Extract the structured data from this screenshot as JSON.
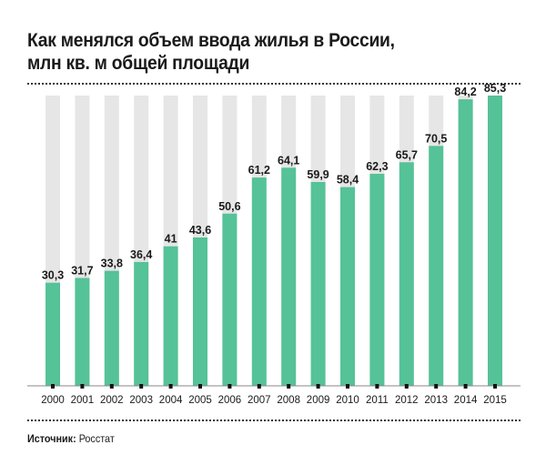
{
  "chart_data": {
    "type": "bar",
    "title": "Как менялся объем ввода жилья в России,",
    "subtitle": "млн кв. м общей площади",
    "categories": [
      "2000",
      "2001",
      "2002",
      "2003",
      "2004",
      "2005",
      "2006",
      "2007",
      "2008",
      "2009",
      "2010",
      "2011",
      "2012",
      "2013",
      "2014",
      "2015"
    ],
    "values": [
      30.3,
      31.7,
      33.8,
      36.4,
      41,
      43.6,
      50.6,
      61.2,
      64.1,
      59.9,
      58.4,
      62.3,
      65.7,
      70.5,
      84.2,
      85.3
    ],
    "labels": [
      "30,3",
      "31,7",
      "33,8",
      "36,4",
      "41",
      "43,6",
      "50,6",
      "61,2",
      "64,1",
      "59,9",
      "58,4",
      "62,3",
      "65,7",
      "70,5",
      "84,2",
      "85,3"
    ],
    "xlabel": "",
    "ylabel": "",
    "ylim": [
      0,
      85.3
    ],
    "grid": false,
    "colors": {
      "bar": "#55c297",
      "background_bar": "#e6e6e6",
      "axis": "#888888"
    }
  },
  "source": {
    "label": "Источник:",
    "value": "Росстат"
  }
}
